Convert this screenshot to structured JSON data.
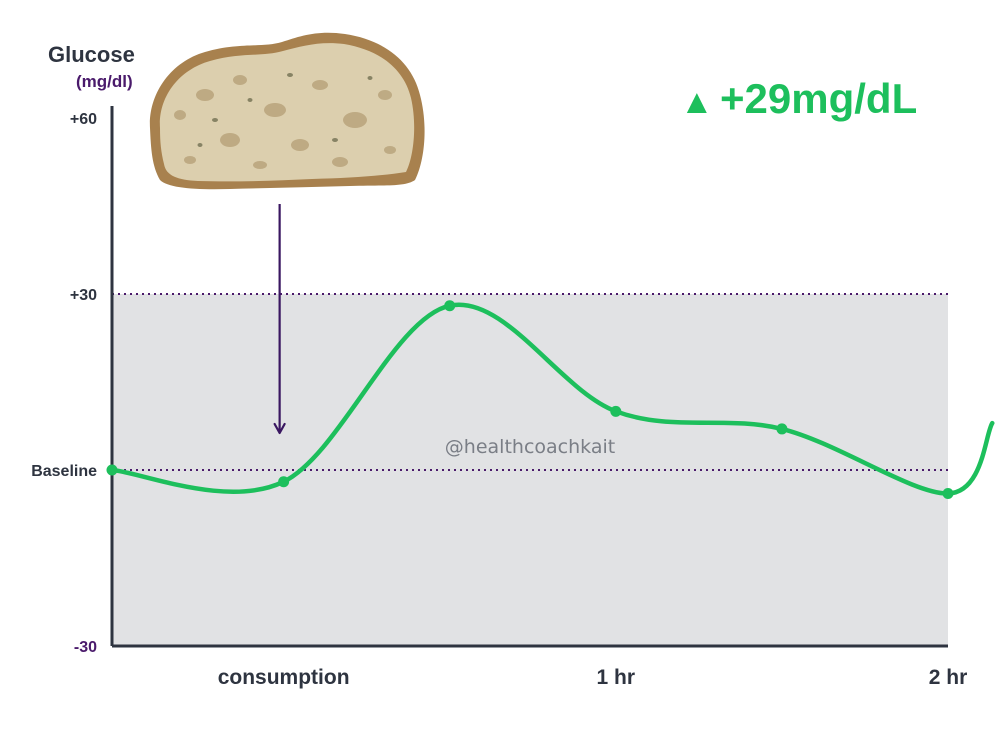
{
  "chart_data": {
    "type": "line",
    "ylabel": "Glucose",
    "ylabel_unit": "(mg/dl)",
    "y_ticks": [
      {
        "value": 60,
        "label": "+60"
      },
      {
        "value": 30,
        "label": "+30"
      },
      {
        "value": 0,
        "label": "Baseline"
      },
      {
        "value": -30,
        "label": "-30"
      }
    ],
    "ylim": [
      -30,
      60
    ],
    "x_unit": "minutes after consumption",
    "x_ticks": [
      {
        "value": 0,
        "label": "consumption"
      },
      {
        "value": 60,
        "label": "1 hr"
      },
      {
        "value": 120,
        "label": "2 hr"
      }
    ],
    "xlim": [
      -31,
      120
    ],
    "series": [
      {
        "color": "#1dbf5c",
        "points": [
          {
            "x": -31,
            "y": 0
          },
          {
            "x": 0,
            "y": -2
          },
          {
            "x": 30,
            "y": 28
          },
          {
            "x": 60,
            "y": 10
          },
          {
            "x": 90,
            "y": 7
          },
          {
            "x": 120,
            "y": -4
          }
        ],
        "continues_to": {
          "x": 128,
          "y": 8
        }
      }
    ],
    "reference_lines": [
      {
        "value": 30
      },
      {
        "value": 0
      }
    ],
    "shaded_region": {
      "from": -30,
      "to": 30,
      "color": "#e1e2e4"
    },
    "annotations": {
      "delta": {
        "symbol": "▲",
        "text": "+29mg/dL",
        "color": "#1dbf5c"
      },
      "watermark": "@healthcoachkait",
      "food_image": "bread-slice",
      "arrow_to": {
        "x": 0
      }
    },
    "grid": false
  },
  "colors": {
    "line": "#1dbf5c",
    "axis": "#2e3440",
    "dotted": "#4a1a6b",
    "shade": "#e1e2e4",
    "arrow": "#3a1761"
  }
}
